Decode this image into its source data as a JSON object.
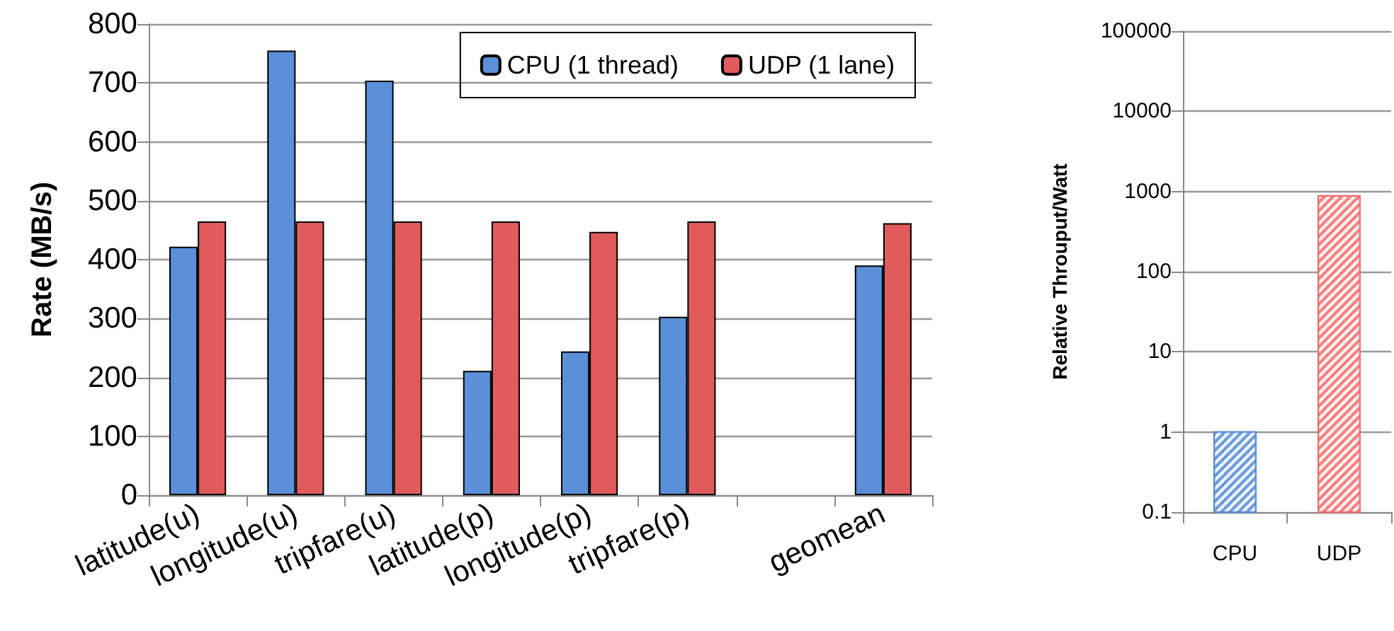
{
  "chart_data": [
    {
      "type": "bar",
      "ylabel": "Rate (MB/s)",
      "categories": [
        "latitude(u)",
        "longitude(u)",
        "tripfare(u)",
        "latitude(p)",
        "longitude(p)",
        "tripfare(p)",
        null,
        "geomean"
      ],
      "series": [
        {
          "name": "CPU (1 thread)",
          "color": "#5b8fd8",
          "values": [
            422,
            755,
            704,
            211,
            244,
            303,
            null,
            390
          ]
        },
        {
          "name": "UDP (1 lane)",
          "color": "#e05c5c",
          "values": [
            465,
            465,
            465,
            465,
            447,
            465,
            null,
            462
          ]
        }
      ],
      "ylim": [
        0,
        800
      ],
      "yticks": [
        0,
        100,
        200,
        300,
        400,
        500,
        600,
        700,
        800
      ],
      "grid": "y",
      "legend": "top right"
    },
    {
      "type": "bar",
      "ylabel": "Relative Throuput/Watt",
      "categories": [
        "CPU",
        "UDP"
      ],
      "values": [
        1,
        880
      ],
      "colors": [
        "#5b8fd8",
        "#f07070"
      ],
      "log": true,
      "ylim": [
        0.1,
        100000
      ],
      "yticks": [
        0.1,
        1,
        10,
        100,
        1000,
        10000,
        100000
      ],
      "grid": "y"
    }
  ]
}
